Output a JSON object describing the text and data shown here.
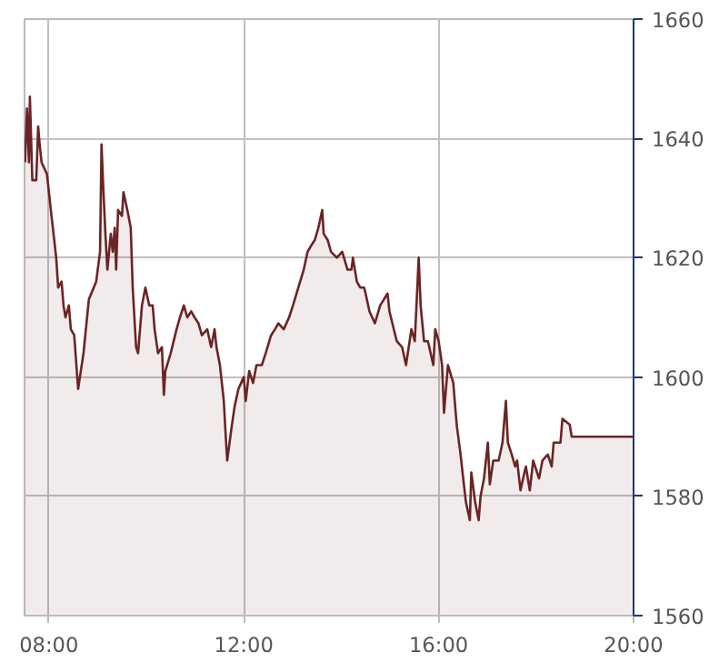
{
  "chart_data": {
    "type": "area",
    "x": [
      7.51,
      7.55,
      7.59,
      7.61,
      7.66,
      7.74,
      7.78,
      7.81,
      7.85,
      7.96,
      8.04,
      8.15,
      8.19,
      8.26,
      8.3,
      8.34,
      8.41,
      8.45,
      8.52,
      8.6,
      8.71,
      8.82,
      8.97,
      9.05,
      9.08,
      9.12,
      9.16,
      9.2,
      9.27,
      9.31,
      9.35,
      9.38,
      9.42,
      9.5,
      9.53,
      9.61,
      9.68,
      9.72,
      9.79,
      9.83,
      9.91,
      9.98,
      10.06,
      10.13,
      10.17,
      10.24,
      10.32,
      10.36,
      10.39,
      10.5,
      10.62,
      10.69,
      10.77,
      10.84,
      10.92,
      10.99,
      11.07,
      11.14,
      11.25,
      11.33,
      11.4,
      11.44,
      11.51,
      11.59,
      11.63,
      11.66,
      11.74,
      11.81,
      11.89,
      12.0,
      12.04,
      12.11,
      12.19,
      12.26,
      12.37,
      12.45,
      12.56,
      12.64,
      12.71,
      12.82,
      12.93,
      13.01,
      13.12,
      13.23,
      13.31,
      13.38,
      13.46,
      13.53,
      13.61,
      13.64,
      13.72,
      13.79,
      13.91,
      14.02,
      14.13,
      14.21,
      14.24,
      14.32,
      14.39,
      14.47,
      14.5,
      14.58,
      14.69,
      14.8,
      14.95,
      14.99,
      15.14,
      15.25,
      15.33,
      15.44,
      15.51,
      15.59,
      15.63,
      15.7,
      15.78,
      15.89,
      15.93,
      16.0,
      16.07,
      16.11,
      16.19,
      16.3,
      16.37,
      16.45,
      16.49,
      16.56,
      16.64,
      16.67,
      16.75,
      16.82,
      16.86,
      16.93,
      17.01,
      17.05,
      17.12,
      17.23,
      17.31,
      17.38,
      17.42,
      17.5,
      17.57,
      17.61,
      17.68,
      17.76,
      17.79,
      17.87,
      17.94,
      18.06,
      18.13,
      18.24,
      18.32,
      18.36,
      18.5,
      18.54,
      18.69,
      18.73,
      20.0
    ],
    "series": [
      {
        "color": "#6b2424",
        "values": [
          1636,
          1645,
          1636,
          1647,
          1633,
          1633,
          1642,
          1639,
          1636,
          1634,
          1628,
          1620,
          1615,
          1616,
          1612,
          1610,
          1612,
          1608,
          1607,
          1598,
          1604,
          1613,
          1616,
          1621,
          1639,
          1631,
          1624,
          1618,
          1624,
          1621,
          1625,
          1618,
          1628,
          1627,
          1631,
          1628,
          1625,
          1615,
          1605,
          1604,
          1612,
          1615,
          1612,
          1612,
          1608,
          1604,
          1605,
          1597,
          1601,
          1604,
          1608,
          1610,
          1612,
          1610,
          1611,
          1610,
          1609,
          1607,
          1608,
          1605,
          1608,
          1605,
          1602,
          1596,
          1590,
          1586,
          1591,
          1595,
          1598,
          1600,
          1596,
          1601,
          1599,
          1602,
          1602,
          1604,
          1607,
          1608,
          1609,
          1608,
          1610,
          1612,
          1615,
          1618,
          1621,
          1622,
          1623,
          1625,
          1628,
          1624,
          1623,
          1621,
          1620,
          1621,
          1618,
          1618,
          1620,
          1616,
          1615,
          1615,
          1614,
          1611,
          1609,
          1612,
          1614,
          1611,
          1606,
          1605,
          1602,
          1608,
          1606,
          1620,
          1612,
          1606,
          1606,
          1602,
          1608,
          1606,
          1602,
          1594,
          1602,
          1599,
          1592,
          1587,
          1584,
          1579,
          1576,
          1584,
          1579,
          1576,
          1580,
          1583,
          1589,
          1582,
          1586,
          1586,
          1589,
          1596,
          1589,
          1587,
          1585,
          1586,
          1581,
          1584,
          1585,
          1581,
          1586,
          1583,
          1586,
          1587,
          1585,
          1589,
          1589,
          1593,
          1592,
          1590,
          1590
        ]
      }
    ],
    "xlim": [
      7.5,
      20.0
    ],
    "ylim": [
      1560,
      1660
    ],
    "xticks": [
      {
        "value": 8,
        "label": "08:00"
      },
      {
        "value": 12,
        "label": "12:00"
      },
      {
        "value": 16,
        "label": "16:00"
      },
      {
        "value": 20,
        "label": "20:00"
      }
    ],
    "yticks": [
      1560,
      1580,
      1600,
      1620,
      1640,
      1660
    ],
    "grid": true
  }
}
